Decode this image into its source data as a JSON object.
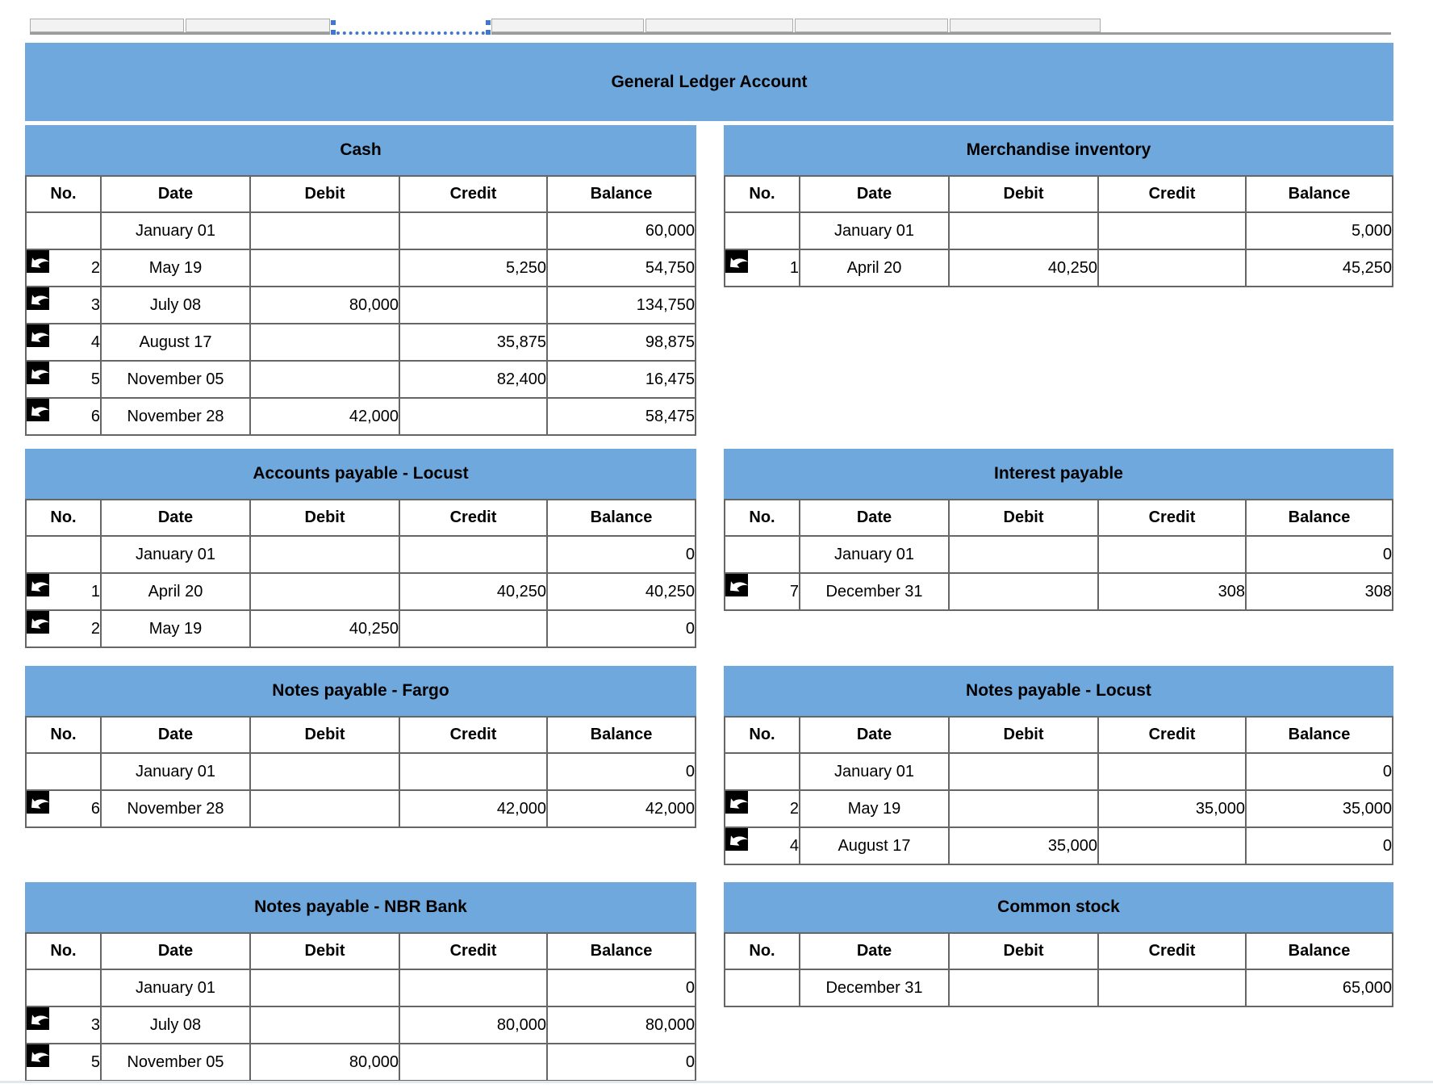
{
  "header": {
    "title": "General Ledger Account"
  },
  "colors": {
    "accent_blue": "#6fa8dc",
    "selection_blue": "#3f76d0",
    "grid_border": "#666666",
    "strip_fill": "#f2f2f2",
    "strip_border": "#ababab",
    "strip_underline": "#9c9c9c",
    "bottom_divider": "#e4e7ea",
    "icon_bg": "#000000",
    "icon_arrow": "#ffffff"
  },
  "columns": [
    "No.",
    "Date",
    "Debit",
    "Credit",
    "Balance"
  ],
  "tables": [
    {
      "key": "cash",
      "title": "Cash",
      "rows": [
        {
          "no": "",
          "date": "January 01",
          "debit": "",
          "credit": "",
          "balance": "60,000",
          "icon": false
        },
        {
          "no": "2",
          "date": "May 19",
          "debit": "",
          "credit": "5,250",
          "balance": "54,750",
          "icon": true
        },
        {
          "no": "3",
          "date": "July 08",
          "debit": "80,000",
          "credit": "",
          "balance": "134,750",
          "icon": true
        },
        {
          "no": "4",
          "date": "August 17",
          "debit": "",
          "credit": "35,875",
          "balance": "98,875",
          "icon": true
        },
        {
          "no": "5",
          "date": "November 05",
          "debit": "",
          "credit": "82,400",
          "balance": "16,475",
          "icon": true
        },
        {
          "no": "6",
          "date": "November 28",
          "debit": "42,000",
          "credit": "",
          "balance": "58,475",
          "icon": true
        }
      ]
    },
    {
      "key": "merchandise_inventory",
      "title": "Merchandise inventory",
      "rows": [
        {
          "no": "",
          "date": "January 01",
          "debit": "",
          "credit": "",
          "balance": "5,000",
          "icon": false
        },
        {
          "no": "1",
          "date": "April 20",
          "debit": "40,250",
          "credit": "",
          "balance": "45,250",
          "icon": true
        }
      ]
    },
    {
      "key": "accounts_payable_locust",
      "title": "Accounts payable - Locust",
      "rows": [
        {
          "no": "",
          "date": "January 01",
          "debit": "",
          "credit": "",
          "balance": "0",
          "icon": false
        },
        {
          "no": "1",
          "date": "April 20",
          "debit": "",
          "credit": "40,250",
          "balance": "40,250",
          "icon": true
        },
        {
          "no": "2",
          "date": "May 19",
          "debit": "40,250",
          "credit": "",
          "balance": "0",
          "icon": true
        }
      ]
    },
    {
      "key": "interest_payable",
      "title": "Interest payable",
      "rows": [
        {
          "no": "",
          "date": "January 01",
          "debit": "",
          "credit": "",
          "balance": "0",
          "icon": false
        },
        {
          "no": "7",
          "date": "December 31",
          "debit": "",
          "credit": "308",
          "balance": "308",
          "icon": true
        }
      ]
    },
    {
      "key": "notes_payable_fargo",
      "title": "Notes payable - Fargo",
      "rows": [
        {
          "no": "",
          "date": "January 01",
          "debit": "",
          "credit": "",
          "balance": "0",
          "icon": false
        },
        {
          "no": "6",
          "date": "November 28",
          "debit": "",
          "credit": "42,000",
          "balance": "42,000",
          "icon": true
        }
      ]
    },
    {
      "key": "notes_payable_locust",
      "title": "Notes payable - Locust",
      "rows": [
        {
          "no": "",
          "date": "January 01",
          "debit": "",
          "credit": "",
          "balance": "0",
          "icon": false
        },
        {
          "no": "2",
          "date": "May 19",
          "debit": "",
          "credit": "35,000",
          "balance": "35,000",
          "icon": true
        },
        {
          "no": "4",
          "date": "August 17",
          "debit": "35,000",
          "credit": "",
          "balance": "0",
          "icon": true
        }
      ]
    },
    {
      "key": "notes_payable_nbr_bank",
      "title": "Notes payable - NBR Bank",
      "rows": [
        {
          "no": "",
          "date": "January 01",
          "debit": "",
          "credit": "",
          "balance": "0",
          "icon": false
        },
        {
          "no": "3",
          "date": "July 08",
          "debit": "",
          "credit": "80,000",
          "balance": "80,000",
          "icon": true
        },
        {
          "no": "5",
          "date": "November 05",
          "debit": "80,000",
          "credit": "",
          "balance": "0",
          "icon": true
        }
      ]
    },
    {
      "key": "common_stock",
      "title": "Common stock",
      "rows": [
        {
          "no": "",
          "date": "December 31",
          "debit": "",
          "credit": "",
          "balance": "65,000",
          "icon": false
        }
      ]
    }
  ]
}
